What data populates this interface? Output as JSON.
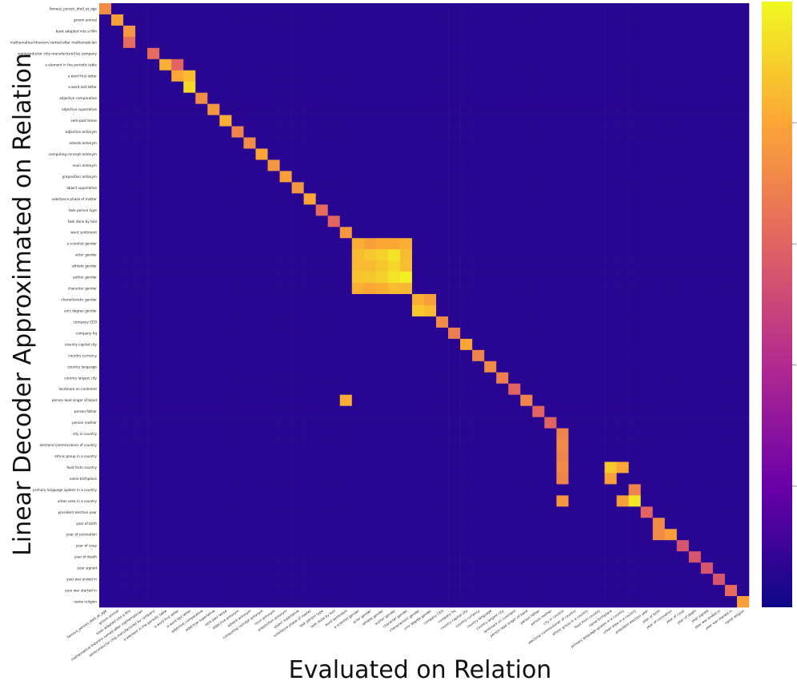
{
  "chart_data": {
    "type": "heatmap",
    "title": "",
    "xlabel": "Evaluated on Relation",
    "ylabel": "Linear Decoder Approximated on Relation",
    "colormap": [
      "#0d0887",
      "#6a00a8",
      "#b12a90",
      "#e16462",
      "#fca636",
      "#f0f921"
    ],
    "value_range": [
      0,
      1
    ],
    "colorbar_ticks": [
      "0.2",
      "0.4",
      "0.6",
      "0.8"
    ],
    "labels": [
      "famous_person_died_at_age",
      "groom animal",
      "book adapted into a film",
      "mathematical theorem named after mathematician",
      "semiconductor chip manufactured by company",
      "a element in the periodic table",
      "a word first letter",
      "a word last letter",
      "adjective comparative",
      "adjective superlative",
      "verb past tense",
      "adjective antonym",
      "adverb antonym",
      "computing concept antonym",
      "noun antonym",
      "preposition antonym",
      "object superlative",
      "substance phase of matter",
      "task person type",
      "task done by tool",
      "word sentiment",
      "a scientist gender",
      "actor gender",
      "athlete gender",
      "author gender",
      "character gender",
      "characteristic gender",
      "univ degree gender",
      "company CEO",
      "company hq",
      "country capital city",
      "country currency",
      "country language",
      "country largest city",
      "landmark on continent",
      "person lead singer of band",
      "person father",
      "person mother",
      "city in country",
      "electoral commissioner of country",
      "ethnic group in a country",
      "food from country",
      "name birthplace",
      "primary language spoken in a country",
      "urban area in a country",
      "president election year",
      "year of birth",
      "year of coronation",
      "year of coup",
      "year of death",
      "year signed",
      "year war ended in",
      "year war started in",
      "name religion"
    ],
    "cells": [
      [
        0,
        0,
        0.72
      ],
      [
        1,
        1,
        0.78
      ],
      [
        2,
        2,
        0.75
      ],
      [
        3,
        2,
        0.62
      ],
      [
        4,
        4,
        0.62
      ],
      [
        5,
        5,
        0.82
      ],
      [
        5,
        6,
        0.6
      ],
      [
        6,
        6,
        0.8
      ],
      [
        6,
        7,
        0.85
      ],
      [
        7,
        7,
        0.92
      ],
      [
        8,
        8,
        0.72
      ],
      [
        9,
        9,
        0.75
      ],
      [
        10,
        10,
        0.82
      ],
      [
        11,
        11,
        0.7
      ],
      [
        12,
        12,
        0.72
      ],
      [
        13,
        13,
        0.8
      ],
      [
        14,
        14,
        0.75
      ],
      [
        15,
        15,
        0.78
      ],
      [
        16,
        16,
        0.75
      ],
      [
        17,
        17,
        0.8
      ],
      [
        18,
        18,
        0.62
      ],
      [
        19,
        19,
        0.6
      ],
      [
        20,
        20,
        0.75
      ],
      [
        21,
        21,
        0.82
      ],
      [
        21,
        22,
        0.78
      ],
      [
        21,
        23,
        0.8
      ],
      [
        21,
        24,
        0.8
      ],
      [
        21,
        25,
        0.82
      ],
      [
        22,
        21,
        0.85
      ],
      [
        22,
        22,
        0.88
      ],
      [
        22,
        23,
        0.9
      ],
      [
        22,
        24,
        0.95
      ],
      [
        22,
        25,
        0.85
      ],
      [
        23,
        21,
        0.85
      ],
      [
        23,
        22,
        0.85
      ],
      [
        23,
        23,
        0.88
      ],
      [
        23,
        24,
        0.92
      ],
      [
        23,
        25,
        0.86
      ],
      [
        24,
        21,
        0.87
      ],
      [
        24,
        22,
        0.88
      ],
      [
        24,
        23,
        0.9
      ],
      [
        24,
        24,
        0.95
      ],
      [
        24,
        25,
        0.98
      ],
      [
        25,
        21,
        0.82
      ],
      [
        25,
        22,
        0.8
      ],
      [
        25,
        23,
        0.82
      ],
      [
        25,
        24,
        0.85
      ],
      [
        25,
        25,
        0.84
      ],
      [
        26,
        26,
        0.82
      ],
      [
        26,
        27,
        0.78
      ],
      [
        27,
        26,
        0.88
      ],
      [
        27,
        27,
        0.85
      ],
      [
        28,
        28,
        0.72
      ],
      [
        29,
        29,
        0.68
      ],
      [
        30,
        30,
        0.8
      ],
      [
        31,
        31,
        0.7
      ],
      [
        32,
        32,
        0.72
      ],
      [
        33,
        33,
        0.68
      ],
      [
        34,
        34,
        0.6
      ],
      [
        35,
        20,
        0.82
      ],
      [
        35,
        35,
        0.7
      ],
      [
        36,
        36,
        0.6
      ],
      [
        37,
        37,
        0.6
      ],
      [
        38,
        38,
        0.7
      ],
      [
        39,
        38,
        0.72
      ],
      [
        40,
        38,
        0.7
      ],
      [
        41,
        38,
        0.72
      ],
      [
        42,
        38,
        0.7
      ],
      [
        41,
        42,
        0.88
      ],
      [
        42,
        42,
        0.78
      ],
      [
        41,
        43,
        0.8
      ],
      [
        43,
        44,
        0.7
      ],
      [
        44,
        38,
        0.75
      ],
      [
        44,
        43,
        0.78
      ],
      [
        44,
        44,
        0.95
      ],
      [
        45,
        45,
        0.6
      ],
      [
        46,
        46,
        0.72
      ],
      [
        47,
        46,
        0.72
      ],
      [
        47,
        47,
        0.78
      ],
      [
        48,
        48,
        0.55
      ],
      [
        49,
        49,
        0.55
      ],
      [
        50,
        50,
        0.55
      ],
      [
        51,
        51,
        0.55
      ],
      [
        52,
        52,
        0.62
      ],
      [
        53,
        53,
        0.78
      ]
    ]
  }
}
